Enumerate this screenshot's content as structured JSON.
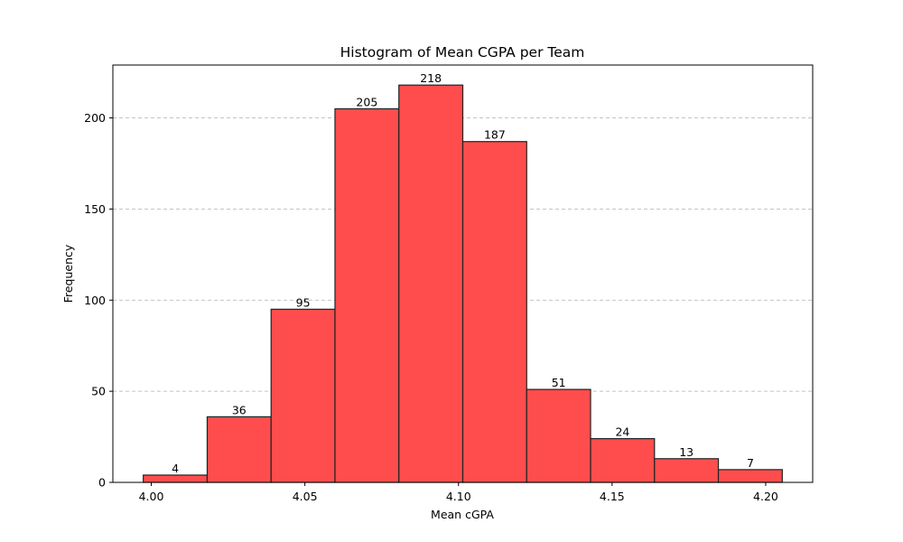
{
  "chart_data": {
    "type": "bar",
    "title": "Histogram of Mean CGPA per Team",
    "xlabel": "Mean cGPA",
    "ylabel": "Frequency",
    "bin_edges": [
      3.9974,
      4.0182,
      4.039,
      4.0598,
      4.0806,
      4.1014,
      4.1222,
      4.143,
      4.1638,
      4.1846,
      4.2054
    ],
    "values": [
      4,
      36,
      95,
      205,
      218,
      187,
      51,
      24,
      13,
      7
    ],
    "xlim": [
      3.9875,
      4.2153
    ],
    "ylim": [
      0,
      229
    ],
    "x_ticks": [
      4.0,
      4.05,
      4.1,
      4.15,
      4.2
    ],
    "x_tick_labels": [
      "4.00",
      "4.05",
      "4.10",
      "4.15",
      "4.20"
    ],
    "y_ticks": [
      0,
      50,
      100,
      150,
      200
    ],
    "y_tick_labels": [
      "0",
      "50",
      "100",
      "150",
      "200"
    ],
    "grid": "y-dashed",
    "bar_color": "#ff4d4d",
    "edge_color": "#222222"
  }
}
